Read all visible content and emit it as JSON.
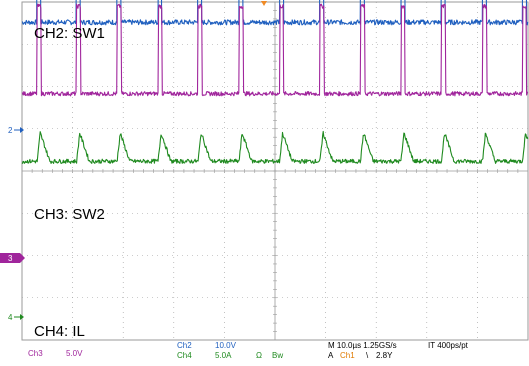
{
  "labels": {
    "ch2": "CH2: SW1",
    "ch3": "CH3: SW2",
    "ch4": "CH4: IL"
  },
  "markers": {
    "ch2": "2",
    "ch3": "3",
    "ch4": "4"
  },
  "status": {
    "ch3_name": "Ch3",
    "ch3_scale": "5.0V",
    "ch2_name": "Ch2",
    "ch2_scale": "10.0V",
    "ch4_name": "Ch4",
    "ch4_scale": "5.0A",
    "ch4_unit_symbol": "Ω",
    "ch4_bw": "Bw",
    "timebase": "M 10.0µs 1.25GS/s",
    "record": "IT 400ps/pt",
    "trigger_mode": "A",
    "trigger_source": "Ch1",
    "trigger_slope": "\\",
    "trigger_level": "2.8Y"
  },
  "colors": {
    "ch2": "#1f5fbf",
    "ch3": "#a0259c",
    "ch4": "#1f8a1f",
    "grid": "#9a9a9a",
    "trigger": "#f08a24"
  },
  "chart_data": {
    "type": "line",
    "title": "",
    "xlabel": "",
    "ylabel": "",
    "x_range_div": [
      0,
      10
    ],
    "y_range_div": [
      -4,
      4
    ],
    "grid": true,
    "series": [
      {
        "name": "CH2: SW1",
        "kind": "switch_high",
        "edges_div": [
          0.3,
          1.08,
          1.88,
          2.69,
          3.48,
          4.29,
          5.09,
          5.89,
          6.69,
          7.49,
          8.29,
          9.1,
          9.89
        ],
        "base_div": 3.52,
        "high_div": 5.84,
        "pulse_width_div": 0.07,
        "noise": 0.06
      },
      {
        "name": "CH3: SW2",
        "kind": "switch_low",
        "edges_div": [
          0.3,
          1.08,
          1.88,
          2.69,
          3.48,
          4.29,
          5.09,
          5.89,
          6.69,
          7.49,
          8.29,
          9.1,
          9.89
        ],
        "base_div": 1.83,
        "high_div": 3.9,
        "noise": 0.05
      },
      {
        "name": "CH4: IL",
        "kind": "inductor_current",
        "edges_div": [
          0.3,
          1.08,
          1.88,
          2.69,
          3.48,
          4.29,
          5.09,
          5.89,
          6.69,
          7.49,
          8.29,
          9.1,
          9.89
        ],
        "base_div": 0.23,
        "peak_div": 0.9,
        "noise": 0.05
      }
    ]
  }
}
